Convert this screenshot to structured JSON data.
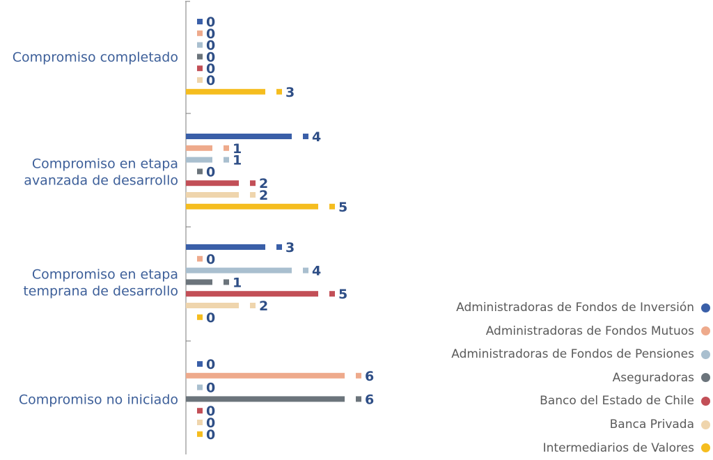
{
  "chart_data": {
    "type": "bar",
    "orientation": "horizontal",
    "categories": [
      "Compromiso completado",
      "Compromiso en etapa avanzada de desarrollo",
      "Compromiso en etapa temprana de desarrollo",
      "Compromiso no iniciado"
    ],
    "category_lines": [
      [
        "Compromiso completado"
      ],
      [
        "Compromiso en etapa",
        "avanzada de desarrollo"
      ],
      [
        "Compromiso en etapa",
        "temprana de desarrollo"
      ],
      [
        "Compromiso no iniciado"
      ]
    ],
    "series": [
      {
        "name": "Administradoras de Fondos de Inversión",
        "color": "#3a5fa8",
        "values": [
          0,
          4,
          3,
          0
        ]
      },
      {
        "name": "Administradoras de Fondos Mutuos",
        "color": "#eeaa8c",
        "values": [
          0,
          1,
          0,
          6
        ]
      },
      {
        "name": "Administradoras de Fondos de Pensiones",
        "color": "#a9bfcf",
        "values": [
          0,
          1,
          4,
          0
        ]
      },
      {
        "name": "Aseguradoras",
        "color": "#6b747b",
        "values": [
          0,
          0,
          1,
          6
        ]
      },
      {
        "name": "Banco del Estado de Chile",
        "color": "#c24f57",
        "values": [
          0,
          2,
          5,
          0
        ]
      },
      {
        "name": "Banca Privada",
        "color": "#efd5ad",
        "values": [
          0,
          2,
          2,
          0
        ]
      },
      {
        "name": "Intermediarios de Valores",
        "color": "#f5bd1f",
        "values": [
          3,
          5,
          0,
          0
        ]
      }
    ],
    "xlim": [
      0,
      6
    ],
    "grid": false,
    "legend_position": "bottom-right",
    "title": "",
    "xlabel": "",
    "ylabel": ""
  }
}
